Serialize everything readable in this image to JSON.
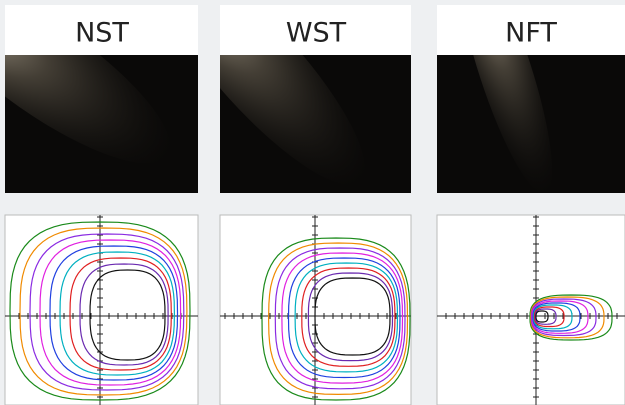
{
  "panels": [
    {
      "title": "NST"
    },
    {
      "title": "WST"
    },
    {
      "title": "NFT"
    }
  ]
}
